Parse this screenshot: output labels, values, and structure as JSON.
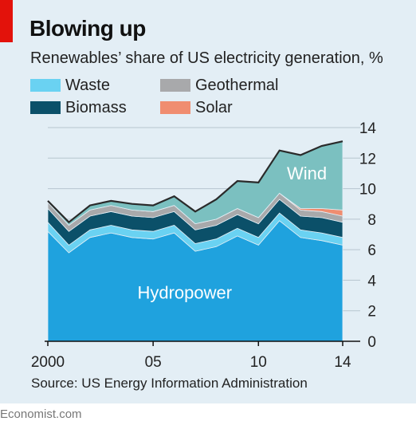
{
  "header": {
    "title": "Blowing up",
    "subtitle": "Renewables’ share of US electricity generation, %"
  },
  "legend": [
    {
      "label": "Waste",
      "color": "#6ad2f2"
    },
    {
      "label": "Geothermal",
      "color": "#a8a9ab"
    },
    {
      "label": "Biomass",
      "color": "#0b5069"
    },
    {
      "label": "Solar",
      "color": "#f08d70"
    }
  ],
  "footer": {
    "source": "Source: US Energy Information Administration",
    "brand": "Economist.com"
  },
  "chart_data": {
    "type": "area",
    "stacked": true,
    "x": [
      2000,
      2001,
      2002,
      2003,
      2004,
      2005,
      2006,
      2007,
      2008,
      2009,
      2010,
      2011,
      2012,
      2013,
      2014
    ],
    "xticks": [
      {
        "value": 2000,
        "label": "2000"
      },
      {
        "value": 2005,
        "label": "05"
      },
      {
        "value": 2010,
        "label": "10"
      },
      {
        "value": 2014,
        "label": "14"
      }
    ],
    "yticks": [
      0,
      2,
      4,
      6,
      8,
      10,
      12,
      14
    ],
    "ylim": [
      0,
      14
    ],
    "ytick_position": "right",
    "grid": true,
    "series": [
      {
        "name": "Hydropower",
        "color": "#1fa2de",
        "label": "Hydropower",
        "values": [
          7.2,
          5.8,
          6.8,
          7.1,
          6.8,
          6.7,
          7.1,
          5.9,
          6.2,
          6.9,
          6.3,
          7.9,
          6.8,
          6.6,
          6.3
        ]
      },
      {
        "name": "Waste",
        "color": "#6ad2f2",
        "values": [
          0.6,
          0.5,
          0.5,
          0.5,
          0.5,
          0.5,
          0.5,
          0.5,
          0.5,
          0.5,
          0.5,
          0.5,
          0.5,
          0.5,
          0.5
        ]
      },
      {
        "name": "Biomass",
        "color": "#0b5069",
        "values": [
          0.9,
          0.9,
          0.9,
          0.9,
          0.9,
          0.9,
          0.9,
          0.9,
          0.9,
          0.9,
          0.9,
          0.9,
          0.9,
          1.0,
          1.0
        ]
      },
      {
        "name": "Geothermal",
        "color": "#a8a9ab",
        "values": [
          0.4,
          0.4,
          0.4,
          0.4,
          0.4,
          0.4,
          0.4,
          0.4,
          0.4,
          0.4,
          0.4,
          0.4,
          0.4,
          0.4,
          0.4
        ]
      },
      {
        "name": "Solar",
        "color": "#f08d70",
        "values": [
          0.0,
          0.0,
          0.0,
          0.0,
          0.0,
          0.0,
          0.0,
          0.0,
          0.0,
          0.0,
          0.0,
          0.0,
          0.1,
          0.2,
          0.4
        ]
      },
      {
        "name": "Wind",
        "color": "#7bc0c0",
        "label": "Wind",
        "values": [
          0.1,
          0.2,
          0.3,
          0.3,
          0.4,
          0.4,
          0.6,
          0.8,
          1.3,
          1.8,
          2.3,
          2.8,
          3.5,
          4.1,
          4.5
        ]
      }
    ]
  }
}
